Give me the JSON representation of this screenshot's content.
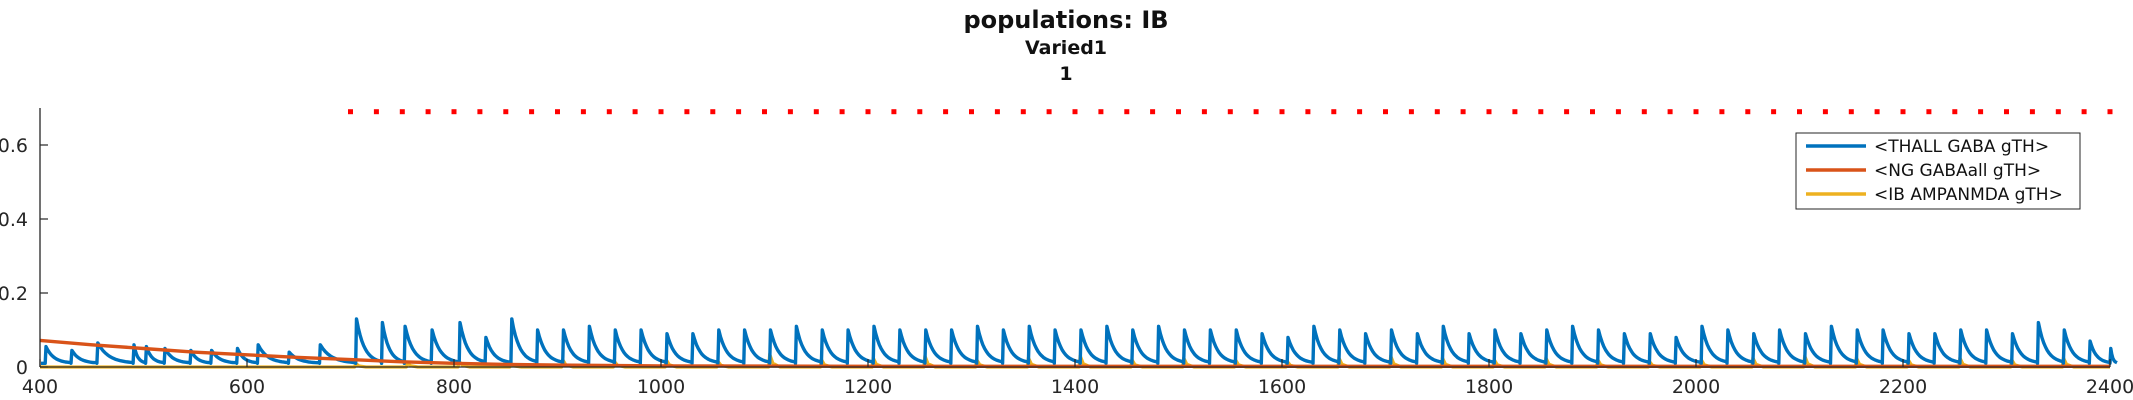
{
  "chart_data": {
    "type": "line",
    "title": "populations: IB",
    "subtitle": "Varied1",
    "subtitle2": "1",
    "xlabel": "",
    "ylabel": "",
    "xlim": [
      400,
      2400
    ],
    "ylim": [
      0,
      0.7
    ],
    "x_ticks": [
      "400",
      "600",
      "800",
      "1000",
      "1200",
      "1400",
      "1600",
      "1800",
      "2000",
      "2200",
      "2400"
    ],
    "y_ticks": [
      "0",
      "0.2",
      "0.4",
      "0.6"
    ],
    "grid": false,
    "legend_position": "top-right",
    "series": [
      {
        "name": "<THALL GABA gTH>",
        "color": "#0072BD",
        "pre_peaks": [
          [
            405,
            0.055
          ],
          [
            430,
            0.045
          ],
          [
            455,
            0.065
          ],
          [
            490,
            0.06
          ],
          [
            502,
            0.055
          ],
          [
            520,
            0.05
          ],
          [
            545,
            0.045
          ],
          [
            565,
            0.045
          ],
          [
            590,
            0.05
          ],
          [
            610,
            0.06
          ],
          [
            640,
            0.04
          ],
          [
            670,
            0.06
          ]
        ],
        "peaks": [
          [
            705,
            0.13
          ],
          [
            730,
            0.12
          ],
          [
            752,
            0.11
          ],
          [
            778,
            0.1
          ],
          [
            805,
            0.12
          ],
          [
            830,
            0.08
          ],
          [
            855,
            0.13
          ],
          [
            880,
            0.1
          ],
          [
            905,
            0.1
          ],
          [
            930,
            0.11
          ],
          [
            955,
            0.1
          ],
          [
            980,
            0.1
          ],
          [
            1005,
            0.09
          ],
          [
            1030,
            0.09
          ],
          [
            1055,
            0.1
          ],
          [
            1080,
            0.1
          ],
          [
            1105,
            0.1
          ],
          [
            1130,
            0.11
          ],
          [
            1155,
            0.1
          ],
          [
            1180,
            0.1
          ],
          [
            1205,
            0.11
          ],
          [
            1230,
            0.1
          ],
          [
            1255,
            0.1
          ],
          [
            1280,
            0.1
          ],
          [
            1305,
            0.11
          ],
          [
            1330,
            0.1
          ],
          [
            1355,
            0.11
          ],
          [
            1380,
            0.1
          ],
          [
            1405,
            0.1
          ],
          [
            1430,
            0.11
          ],
          [
            1455,
            0.1
          ],
          [
            1480,
            0.11
          ],
          [
            1505,
            0.1
          ],
          [
            1530,
            0.1
          ],
          [
            1555,
            0.1
          ],
          [
            1580,
            0.09
          ],
          [
            1605,
            0.08
          ],
          [
            1630,
            0.11
          ],
          [
            1655,
            0.1
          ],
          [
            1680,
            0.09
          ],
          [
            1705,
            0.1
          ],
          [
            1730,
            0.09
          ],
          [
            1755,
            0.11
          ],
          [
            1780,
            0.09
          ],
          [
            1805,
            0.1
          ],
          [
            1830,
            0.09
          ],
          [
            1855,
            0.1
          ],
          [
            1880,
            0.11
          ],
          [
            1905,
            0.1
          ],
          [
            1930,
            0.09
          ],
          [
            1955,
            0.09
          ],
          [
            1980,
            0.08
          ],
          [
            2005,
            0.11
          ],
          [
            2030,
            0.1
          ],
          [
            2055,
            0.09
          ],
          [
            2080,
            0.1
          ],
          [
            2105,
            0.09
          ],
          [
            2130,
            0.11
          ],
          [
            2155,
            0.1
          ],
          [
            2180,
            0.1
          ],
          [
            2205,
            0.09
          ],
          [
            2230,
            0.09
          ],
          [
            2255,
            0.1
          ],
          [
            2280,
            0.1
          ],
          [
            2305,
            0.09
          ],
          [
            2330,
            0.12
          ],
          [
            2355,
            0.1
          ],
          [
            2380,
            0.07
          ],
          [
            2400,
            0.05
          ]
        ],
        "baseline": 0.01
      },
      {
        "name": "<NG GABAall gTH>",
        "color": "#D95319",
        "x": [
          400,
          450,
          500,
          550,
          600,
          650,
          700,
          750,
          800,
          850,
          900,
          1000,
          1200,
          1400,
          1600,
          1800,
          2000,
          2200,
          2400
        ],
        "values": [
          0.072,
          0.06,
          0.05,
          0.04,
          0.033,
          0.026,
          0.02,
          0.014,
          0.01,
          0.007,
          0.005,
          0.003,
          0.002,
          0.002,
          0.002,
          0.002,
          0.002,
          0.002,
          0.002
        ]
      },
      {
        "name": "<IB AMPANMDA gTH>",
        "color": "#EDB120",
        "baseline": 0.0,
        "spikes": [
          [
            705,
            0.01
          ],
          [
            755,
            0.012
          ],
          [
            805,
            0.015
          ],
          [
            855,
            0.01
          ],
          [
            905,
            0.02
          ],
          [
            955,
            0.015
          ],
          [
            1005,
            0.02
          ],
          [
            1055,
            0.015
          ],
          [
            1105,
            0.035
          ],
          [
            1155,
            0.02
          ],
          [
            1205,
            0.025
          ],
          [
            1255,
            0.03
          ],
          [
            1305,
            0.02
          ],
          [
            1355,
            0.025
          ],
          [
            1405,
            0.03
          ],
          [
            1455,
            0.02
          ],
          [
            1505,
            0.025
          ],
          [
            1555,
            0.02
          ],
          [
            1605,
            0.015
          ],
          [
            1655,
            0.025
          ],
          [
            1705,
            0.03
          ],
          [
            1755,
            0.025
          ],
          [
            1805,
            0.02
          ],
          [
            1855,
            0.025
          ],
          [
            1905,
            0.02
          ],
          [
            1955,
            0.015
          ],
          [
            2005,
            0.02
          ],
          [
            2055,
            0.025
          ],
          [
            2105,
            0.03
          ],
          [
            2155,
            0.025
          ],
          [
            2205,
            0.02
          ],
          [
            2255,
            0.025
          ],
          [
            2305,
            0.02
          ],
          [
            2355,
            0.025
          ]
        ]
      }
    ],
    "markers": {
      "color": "#FF0000",
      "y": 0.69,
      "x_start": 700,
      "x_end": 2400,
      "step": 25
    }
  }
}
